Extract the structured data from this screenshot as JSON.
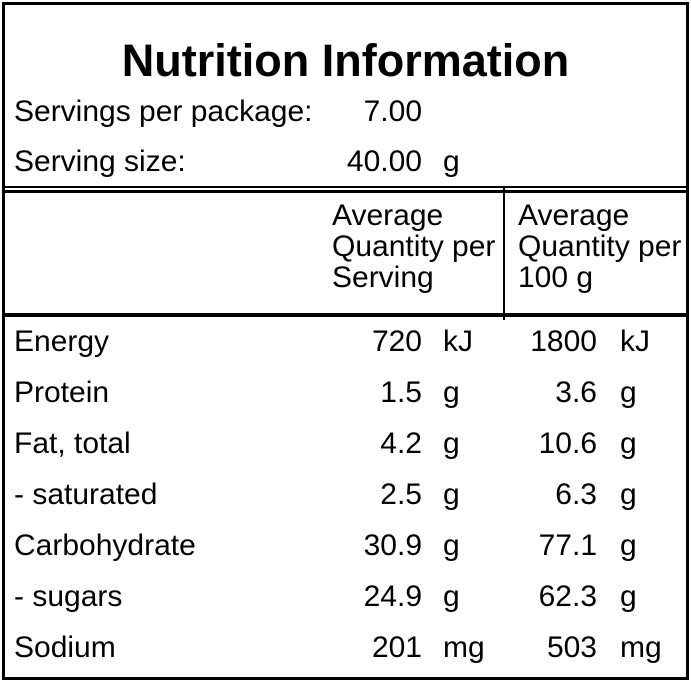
{
  "title": "Nutrition Information",
  "colors": {
    "background": "#ffffff",
    "text": "#000000",
    "border": "#000000"
  },
  "serving_info": {
    "rows": [
      {
        "label": "Servings per package:",
        "value": "7.00",
        "unit": ""
      },
      {
        "label": "Serving size:",
        "value": "40.00",
        "unit": "g"
      }
    ]
  },
  "table": {
    "column_headers": [
      {
        "lines": [
          "Average",
          "Quantity per",
          "Serving"
        ]
      },
      {
        "lines": [
          "Average",
          "Quantity per",
          "100 g"
        ]
      }
    ],
    "rows": [
      {
        "nutrient": "Energy",
        "per_serving": "720",
        "per_serving_unit": "kJ",
        "per_100g": "1800",
        "per_100g_unit": "kJ"
      },
      {
        "nutrient": "Protein",
        "per_serving": "1.5",
        "per_serving_unit": "g",
        "per_100g": "3.6",
        "per_100g_unit": "g"
      },
      {
        "nutrient": "Fat, total",
        "per_serving": "4.2",
        "per_serving_unit": "g",
        "per_100g": "10.6",
        "per_100g_unit": "g"
      },
      {
        "nutrient": "- saturated",
        "per_serving": "2.5",
        "per_serving_unit": "g",
        "per_100g": "6.3",
        "per_100g_unit": "g"
      },
      {
        "nutrient": "Carbohydrate",
        "per_serving": "30.9",
        "per_serving_unit": "g",
        "per_100g": "77.1",
        "per_100g_unit": "g"
      },
      {
        "nutrient": "- sugars",
        "per_serving": "24.9",
        "per_serving_unit": "g",
        "per_100g": "62.3",
        "per_100g_unit": "g"
      },
      {
        "nutrient": "Sodium",
        "per_serving": "201",
        "per_serving_unit": "mg",
        "per_100g": "503",
        "per_100g_unit": "mg"
      }
    ]
  }
}
